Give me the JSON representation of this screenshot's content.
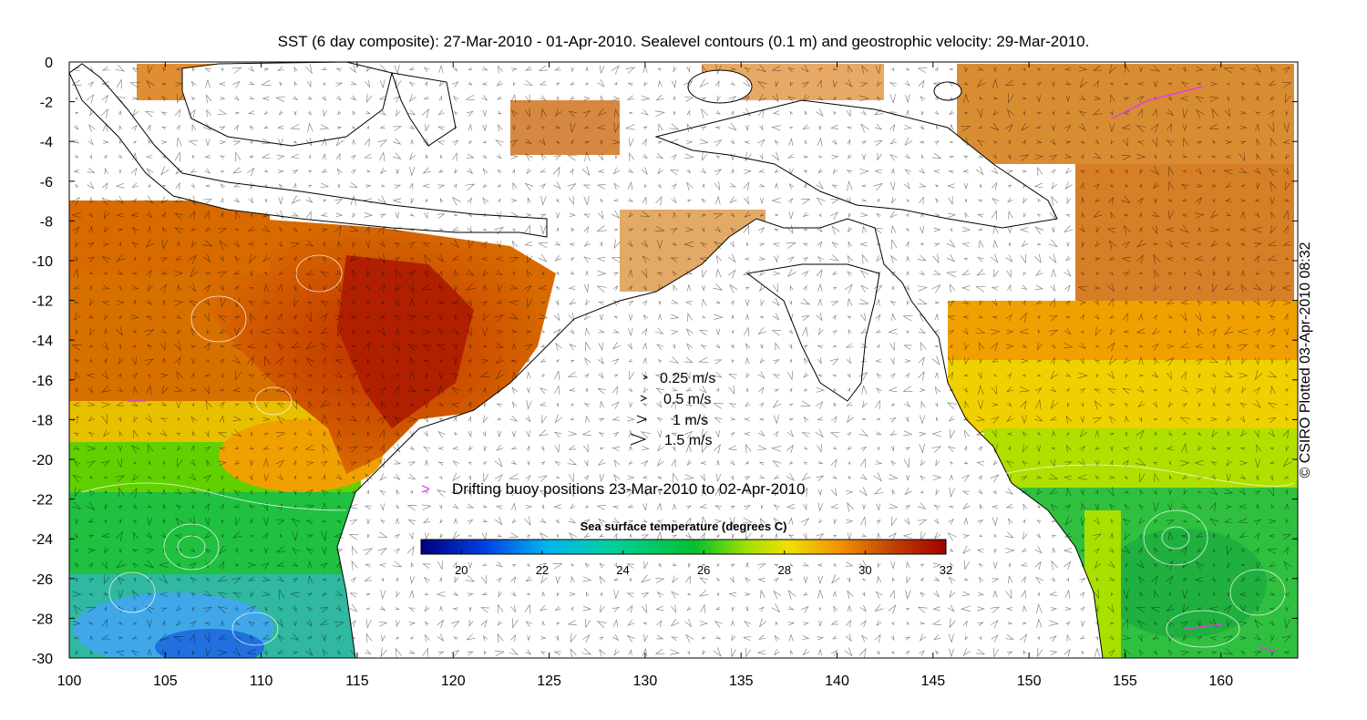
{
  "title": "SST (6 day composite): 27-Mar-2010 - 01-Apr-2010. Sealevel contours (0.1 m) and geostrophic velocity: 29-Mar-2010.",
  "credit": "© CSIRO Plotted 03-Apr-2010 08:32",
  "axes": {
    "x": {
      "min": 100,
      "max": 164,
      "ticks": [
        100,
        105,
        110,
        115,
        120,
        125,
        130,
        135,
        140,
        145,
        150,
        155,
        160
      ]
    },
    "y": {
      "min": -30,
      "max": 0,
      "ticks": [
        0,
        -2,
        -4,
        -6,
        -8,
        -10,
        -12,
        -14,
        -16,
        -18,
        -20,
        -22,
        -24,
        -26,
        -28,
        -30
      ]
    }
  },
  "velocity_legend": [
    {
      "label": "0.25 m/s",
      "speed": 0.25
    },
    {
      "label": "0.5 m/s",
      "speed": 0.5
    },
    {
      "label": "1 m/s",
      "speed": 1
    },
    {
      "label": "1.5 m/s",
      "speed": 1.5
    }
  ],
  "buoy_legend": {
    "symbol": ">",
    "label": "Drifting buoy positions 23-Mar-2010 to 02-Apr-2010",
    "color": "#e040e0"
  },
  "colorbar": {
    "title": "Sea surface temperature (degrees C)",
    "min": 19,
    "max": 32,
    "ticks": [
      20,
      22,
      24,
      26,
      28,
      30,
      32
    ],
    "colors": [
      "#00007a",
      "#0040e0",
      "#00b4f0",
      "#00d0a0",
      "#00c030",
      "#a0e000",
      "#f0e000",
      "#f09000",
      "#c04000",
      "#a00000"
    ]
  },
  "colors": {
    "land": "#ffffff",
    "coast": "#000000",
    "contour": "#ffffff",
    "vector": "#000000"
  }
}
